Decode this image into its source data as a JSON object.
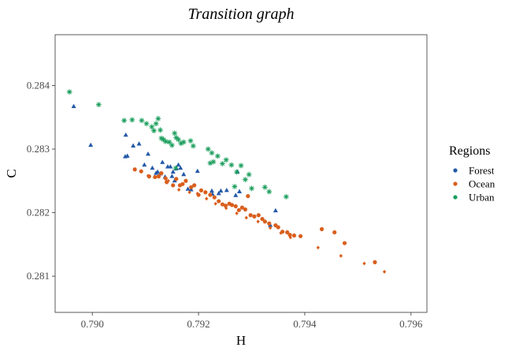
{
  "chart_data": {
    "type": "scatter",
    "title": "Transition graph",
    "xlabel": "H",
    "ylabel": "C",
    "xlim": [
      0.7893,
      0.7963
    ],
    "ylim": [
      0.28043,
      0.2848
    ],
    "x_ticks": [
      "0.790",
      "0.792",
      "0.794",
      "0.796"
    ],
    "x_tick_values": [
      0.79,
      0.792,
      0.794,
      0.796
    ],
    "y_ticks": [
      "0.281",
      "0.282",
      "0.283",
      "0.284"
    ],
    "y_tick_values": [
      0.281,
      0.282,
      0.283,
      0.284
    ],
    "grid": false,
    "legend": {
      "title": "Regions",
      "position": "right"
    },
    "series": [
      {
        "name": "Forest",
        "color": "#2459a8",
        "marker": "triangle",
        "points": [
          [
            0.78965,
            0.28367
          ],
          [
            0.78997,
            0.28306
          ],
          [
            0.79063,
            0.28322
          ],
          [
            0.79062,
            0.28288
          ],
          [
            0.79066,
            0.28289
          ],
          [
            0.79077,
            0.28305
          ],
          [
            0.79088,
            0.28308
          ],
          [
            0.79098,
            0.28275
          ],
          [
            0.79105,
            0.28292
          ],
          [
            0.79113,
            0.2827
          ],
          [
            0.7912,
            0.28262
          ],
          [
            0.79123,
            0.28264
          ],
          [
            0.79128,
            0.28261
          ],
          [
            0.79132,
            0.28279
          ],
          [
            0.79137,
            0.28256
          ],
          [
            0.79142,
            0.28272
          ],
          [
            0.79147,
            0.28272
          ],
          [
            0.7915,
            0.28257
          ],
          [
            0.79152,
            0.28264
          ],
          [
            0.79155,
            0.2825
          ],
          [
            0.79158,
            0.28269
          ],
          [
            0.79162,
            0.28275
          ],
          [
            0.79166,
            0.2827
          ],
          [
            0.79172,
            0.2826
          ],
          [
            0.7918,
            0.28237
          ],
          [
            0.79186,
            0.28236
          ],
          [
            0.79198,
            0.28265
          ],
          [
            0.79225,
            0.28234
          ],
          [
            0.79226,
            0.28229
          ],
          [
            0.79238,
            0.2823
          ],
          [
            0.79242,
            0.28234
          ],
          [
            0.79253,
            0.28235
          ],
          [
            0.7927,
            0.28227
          ],
          [
            0.79273,
            0.28264
          ],
          [
            0.79277,
            0.28233
          ],
          [
            0.79335,
            0.2818
          ],
          [
            0.79345,
            0.28203
          ]
        ]
      },
      {
        "name": "Ocean",
        "color": "#d95f1e",
        "marker": "circle",
        "points": [
          [
            0.7908,
            0.28268
          ],
          [
            0.79092,
            0.28265
          ],
          [
            0.79107,
            0.28257
          ],
          [
            0.79118,
            0.28256
          ],
          [
            0.79125,
            0.28257
          ],
          [
            0.7913,
            0.28262
          ],
          [
            0.79138,
            0.28254
          ],
          [
            0.7914,
            0.28248
          ],
          [
            0.79152,
            0.28243
          ],
          [
            0.79158,
            0.28253
          ],
          [
            0.79165,
            0.28243
          ],
          [
            0.7917,
            0.28245
          ],
          [
            0.79176,
            0.2825
          ],
          [
            0.79186,
            0.2824
          ],
          [
            0.79192,
            0.28243
          ],
          [
            0.792,
            0.28228
          ],
          [
            0.79205,
            0.28235
          ],
          [
            0.79213,
            0.28232
          ],
          [
            0.79222,
            0.28228
          ],
          [
            0.7923,
            0.28224
          ],
          [
            0.79238,
            0.28218
          ],
          [
            0.79245,
            0.28213
          ],
          [
            0.79251,
            0.28211
          ],
          [
            0.79258,
            0.28214
          ],
          [
            0.79263,
            0.28212
          ],
          [
            0.7927,
            0.2821
          ],
          [
            0.79276,
            0.28204
          ],
          [
            0.79282,
            0.28208
          ],
          [
            0.79288,
            0.28205
          ],
          [
            0.79293,
            0.28226
          ],
          [
            0.79298,
            0.28196
          ],
          [
            0.79305,
            0.28194
          ],
          [
            0.79313,
            0.28196
          ],
          [
            0.7932,
            0.2819
          ],
          [
            0.79325,
            0.28186
          ],
          [
            0.79333,
            0.28183
          ],
          [
            0.79345,
            0.2818
          ],
          [
            0.7935,
            0.28177
          ],
          [
            0.79358,
            0.2817
          ],
          [
            0.79367,
            0.28169
          ],
          [
            0.79372,
            0.28165
          ],
          [
            0.7938,
            0.28164
          ],
          [
            0.79392,
            0.28163
          ],
          [
            0.79432,
            0.28174
          ],
          [
            0.79456,
            0.28169
          ],
          [
            0.79475,
            0.28152
          ],
          [
            0.79532,
            0.28122
          ]
        ]
      },
      {
        "name": "Ocean",
        "color": "#d95f1e",
        "marker": "diamond",
        "points": [
          [
            0.79105,
            0.28258
          ],
          [
            0.79143,
            0.2825
          ],
          [
            0.79163,
            0.28236
          ],
          [
            0.79183,
            0.28232
          ],
          [
            0.79198,
            0.2823
          ],
          [
            0.79215,
            0.28222
          ],
          [
            0.79232,
            0.28214
          ],
          [
            0.79252,
            0.28207
          ],
          [
            0.79272,
            0.28199
          ],
          [
            0.7929,
            0.28192
          ],
          [
            0.79312,
            0.28186
          ],
          [
            0.79335,
            0.28176
          ],
          [
            0.79355,
            0.28168
          ],
          [
            0.79373,
            0.28161
          ],
          [
            0.79425,
            0.28145
          ],
          [
            0.79468,
            0.28132
          ],
          [
            0.79512,
            0.2812
          ],
          [
            0.7955,
            0.28107
          ]
        ]
      },
      {
        "name": "Urban",
        "color": "#1a9e5c",
        "marker": "asterisk",
        "points": [
          [
            0.78957,
            0.2839
          ],
          [
            0.79012,
            0.2837
          ],
          [
            0.7906,
            0.28345
          ],
          [
            0.79075,
            0.28346
          ],
          [
            0.79093,
            0.28345
          ],
          [
            0.79102,
            0.2834
          ],
          [
            0.79112,
            0.28335
          ],
          [
            0.79116,
            0.28329
          ],
          [
            0.7912,
            0.2834
          ],
          [
            0.79124,
            0.28348
          ],
          [
            0.79128,
            0.2833
          ],
          [
            0.7913,
            0.28317
          ],
          [
            0.79134,
            0.28315
          ],
          [
            0.79138,
            0.28312
          ],
          [
            0.79145,
            0.28311
          ],
          [
            0.7915,
            0.28306
          ],
          [
            0.79155,
            0.28325
          ],
          [
            0.79158,
            0.28318
          ],
          [
            0.79162,
            0.28315
          ],
          [
            0.79167,
            0.28309
          ],
          [
            0.79172,
            0.28311
          ],
          [
            0.79185,
            0.28313
          ],
          [
            0.79218,
            0.283
          ],
          [
            0.79225,
            0.28294
          ],
          [
            0.79236,
            0.28289
          ],
          [
            0.79245,
            0.28277
          ],
          [
            0.79252,
            0.28283
          ],
          [
            0.79262,
            0.28275
          ],
          [
            0.79272,
            0.28264
          ],
          [
            0.7928,
            0.28274
          ],
          [
            0.79288,
            0.28252
          ],
          [
            0.79295,
            0.2826
          ],
          [
            0.793,
            0.28238
          ],
          [
            0.79268,
            0.28241
          ],
          [
            0.79325,
            0.2824
          ],
          [
            0.79333,
            0.28233
          ],
          [
            0.79365,
            0.28225
          ],
          [
            0.79222,
            0.28278
          ],
          [
            0.79228,
            0.2828
          ],
          [
            0.7919,
            0.28305
          ],
          [
            0.79157,
            0.2827
          ]
        ]
      }
    ],
    "legend_entries": [
      {
        "name": "Forest",
        "color": "#2459a8"
      },
      {
        "name": "Ocean",
        "color": "#d95f1e"
      },
      {
        "name": "Urban",
        "color": "#1a9e5c"
      }
    ]
  }
}
